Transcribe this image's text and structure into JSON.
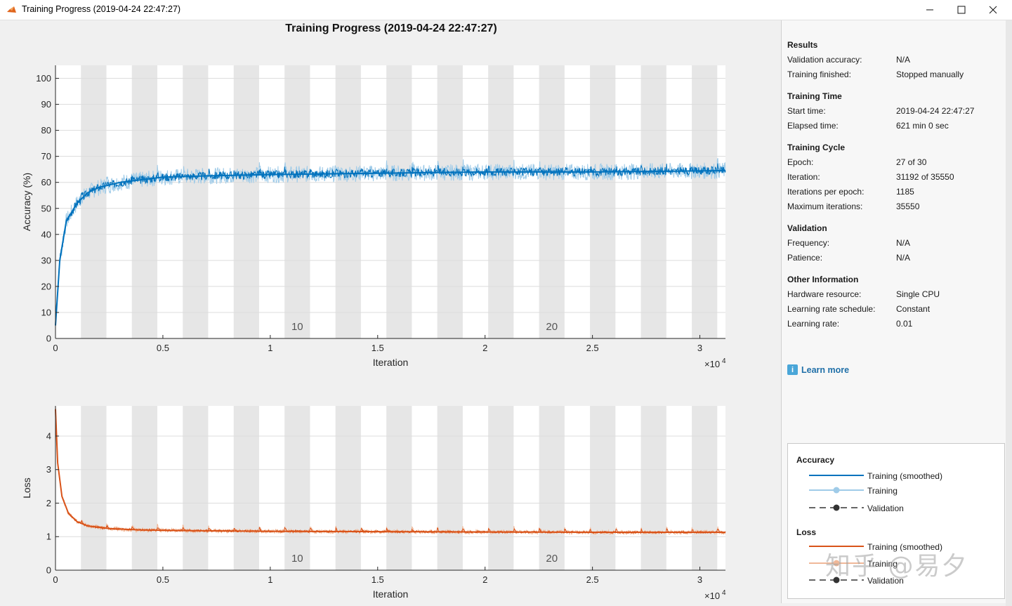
{
  "window": {
    "title": "Training Progress (2019-04-24 22:47:27)"
  },
  "plot_title": "Training Progress (2019-04-24 22:47:27)",
  "chart_data": [
    {
      "type": "line",
      "name": "accuracy",
      "xlabel": "Iteration",
      "ylabel": "Accuracy (%)",
      "xlim": [
        0,
        31192
      ],
      "ylim": [
        0,
        105
      ],
      "x_exponent_label": "×10",
      "x_exponent_power": "4",
      "xticks": [
        0,
        5000,
        10000,
        15000,
        20000,
        25000,
        30000
      ],
      "xtick_labels": [
        "0",
        "0.5",
        "1",
        "1.5",
        "2",
        "2.5",
        "3"
      ],
      "yticks": [
        0,
        10,
        20,
        30,
        40,
        50,
        60,
        70,
        80,
        90,
        100
      ],
      "ytick_labels": [
        "0",
        "10",
        "20",
        "30",
        "40",
        "50",
        "60",
        "70",
        "80",
        "90",
        "100"
      ],
      "epoch_labels": [
        {
          "label": "10",
          "epoch": 10
        },
        {
          "label": "20",
          "epoch": 20
        }
      ],
      "series": [
        {
          "name": "Training (smoothed)",
          "color": "#0072bd",
          "x": [
            0,
            200,
            500,
            1000,
            1500,
            2000,
            3000,
            4000,
            5000,
            7000,
            10000,
            15000,
            20000,
            25000,
            31192
          ],
          "y": [
            5,
            30,
            45,
            52,
            56,
            58,
            60,
            61,
            62,
            62.5,
            63,
            63.5,
            64,
            64,
            64.5
          ]
        }
      ]
    },
    {
      "type": "line",
      "name": "loss",
      "xlabel": "Iteration",
      "ylabel": "Loss",
      "xlim": [
        0,
        31192
      ],
      "ylim": [
        0,
        4.9
      ],
      "x_exponent_label": "×10",
      "x_exponent_power": "4",
      "xticks": [
        0,
        5000,
        10000,
        15000,
        20000,
        25000,
        30000
      ],
      "xtick_labels": [
        "0",
        "0.5",
        "1",
        "1.5",
        "2",
        "2.5",
        "3"
      ],
      "yticks": [
        0,
        1,
        2,
        3,
        4
      ],
      "ytick_labels": [
        "0",
        "1",
        "2",
        "3",
        "4"
      ],
      "epoch_labels": [
        {
          "label": "10",
          "epoch": 10
        },
        {
          "label": "20",
          "epoch": 20
        }
      ],
      "series": [
        {
          "name": "Training (smoothed)",
          "color": "#d95319",
          "x": [
            0,
            100,
            300,
            600,
            1000,
            1500,
            2500,
            4000,
            6000,
            10000,
            15000,
            20000,
            25000,
            31192
          ],
          "y": [
            4.8,
            3.2,
            2.2,
            1.7,
            1.45,
            1.32,
            1.24,
            1.2,
            1.18,
            1.16,
            1.15,
            1.14,
            1.13,
            1.13
          ]
        }
      ]
    }
  ],
  "epochs_shown": 27,
  "iterations_per_epoch": 1185,
  "panel": {
    "results_head": "Results",
    "val_acc_label": "Validation accuracy:",
    "val_acc_value": "N/A",
    "finished_label": "Training finished:",
    "finished_value": "Stopped manually",
    "time_head": "Training Time",
    "start_label": "Start time:",
    "start_value": "2019-04-24 22:47:27",
    "elapsed_label": "Elapsed time:",
    "elapsed_value": "621 min 0 sec",
    "cycle_head": "Training Cycle",
    "epoch_label": "Epoch:",
    "epoch_value": "27 of 30",
    "iter_label": "Iteration:",
    "iter_value": "31192 of 35550",
    "ipe_label": "Iterations per epoch:",
    "ipe_value": "1185",
    "maxiter_label": "Maximum iterations:",
    "maxiter_value": "35550",
    "validation_head": "Validation",
    "freq_label": "Frequency:",
    "freq_value": "N/A",
    "patience_label": "Patience:",
    "patience_value": "N/A",
    "other_head": "Other Information",
    "hw_label": "Hardware resource:",
    "hw_value": "Single CPU",
    "lrs_label": "Learning rate schedule:",
    "lrs_value": "Constant",
    "lr_label": "Learning rate:",
    "lr_value": "0.01",
    "learn_more": "Learn more"
  },
  "legend": {
    "acc_head": "Accuracy",
    "acc_smoothed": "Training (smoothed)",
    "acc_training": "Training",
    "acc_validation": "Validation",
    "loss_head": "Loss",
    "loss_smoothed": "Training (smoothed)",
    "loss_training": "Training",
    "loss_validation": "Validation"
  },
  "watermark": "知乎 @易夕",
  "colors": {
    "accuracy": "#0072bd",
    "accuracy_raw": "#9fcbe8",
    "loss": "#d95319",
    "loss_raw": "#f0b898",
    "epoch_shade": "#e6e6e6"
  }
}
